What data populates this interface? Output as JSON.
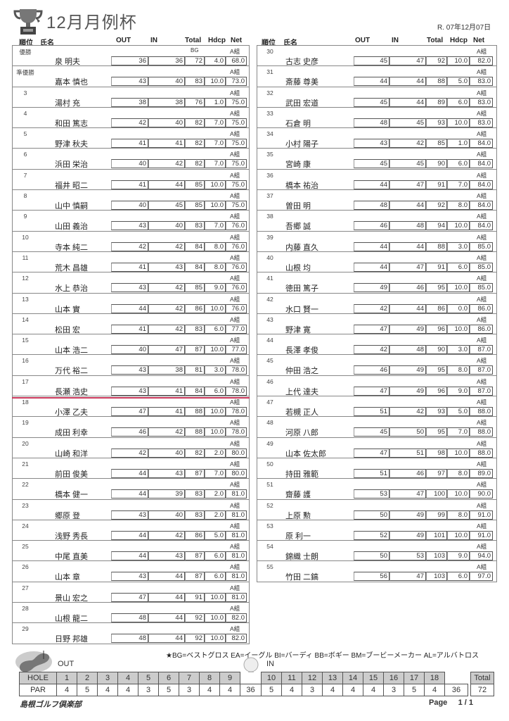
{
  "header": {
    "title": "12月月例杯",
    "date": "R. 07年12月07日"
  },
  "columns": {
    "rank": "順位",
    "name": "氏名",
    "out": "OUT",
    "in": "IN",
    "total": "Total",
    "hdcp": "Hdcp",
    "net": "Net"
  },
  "results": [
    [
      "優勝",
      "泉 明夫",
      36,
      36,
      72,
      "4.0",
      "68.0",
      "A組",
      "BG"
    ],
    [
      "準優勝",
      "嘉本 慎也",
      43,
      40,
      83,
      "10.0",
      "73.0",
      "A組",
      ""
    ],
    [
      "3",
      "湯村 充",
      38,
      38,
      76,
      "1.0",
      "75.0",
      "A組",
      ""
    ],
    [
      "4",
      "和田 篤志",
      42,
      40,
      82,
      "7.0",
      "75.0",
      "A組",
      ""
    ],
    [
      "5",
      "野津 秋夫",
      41,
      41,
      82,
      "7.0",
      "75.0",
      "A組",
      ""
    ],
    [
      "6",
      "浜田 栄治",
      40,
      42,
      82,
      "7.0",
      "75.0",
      "A組",
      ""
    ],
    [
      "7",
      "福井 昭二",
      41,
      44,
      85,
      "10.0",
      "75.0",
      "A組",
      ""
    ],
    [
      "8",
      "山中 慎嗣",
      40,
      45,
      85,
      "10.0",
      "75.0",
      "A組",
      ""
    ],
    [
      "9",
      "山田 義治",
      43,
      40,
      83,
      "7.0",
      "76.0",
      "A組",
      ""
    ],
    [
      "10",
      "寺本 純二",
      42,
      42,
      84,
      "8.0",
      "76.0",
      "A組",
      ""
    ],
    [
      "11",
      "荒木 昌雄",
      41,
      43,
      84,
      "8.0",
      "76.0",
      "A組",
      ""
    ],
    [
      "12",
      "水上 恭治",
      43,
      42,
      85,
      "9.0",
      "76.0",
      "A組",
      ""
    ],
    [
      "13",
      "山本 實",
      44,
      42,
      86,
      "10.0",
      "76.0",
      "A組",
      ""
    ],
    [
      "14",
      "松田 宏",
      41,
      42,
      83,
      "6.0",
      "77.0",
      "A組",
      ""
    ],
    [
      "15",
      "山本 浩二",
      40,
      47,
      87,
      "10.0",
      "77.0",
      "A組",
      ""
    ],
    [
      "16",
      "万代 裕二",
      43,
      38,
      81,
      "3.0",
      "78.0",
      "A組",
      ""
    ],
    [
      "17",
      "長瀬 浩史",
      43,
      41,
      84,
      "6.0",
      "78.0",
      "A組",
      ""
    ],
    [
      "18",
      "小澤 乙夫",
      47,
      41,
      88,
      "10.0",
      "78.0",
      "A組",
      ""
    ],
    [
      "19",
      "成田 利幸",
      46,
      42,
      88,
      "10.0",
      "78.0",
      "A組",
      ""
    ],
    [
      "20",
      "山崎 和洋",
      42,
      40,
      82,
      "2.0",
      "80.0",
      "A組",
      ""
    ],
    [
      "21",
      "前田 俊美",
      44,
      43,
      87,
      "7.0",
      "80.0",
      "A組",
      ""
    ],
    [
      "22",
      "橋本 健一",
      44,
      39,
      83,
      "2.0",
      "81.0",
      "A組",
      ""
    ],
    [
      "23",
      "郷原 登",
      43,
      40,
      83,
      "2.0",
      "81.0",
      "A組",
      ""
    ],
    [
      "24",
      "浅野 秀長",
      44,
      42,
      86,
      "5.0",
      "81.0",
      "A組",
      ""
    ],
    [
      "25",
      "中尾 直美",
      44,
      43,
      87,
      "6.0",
      "81.0",
      "A組",
      ""
    ],
    [
      "26",
      "山本 章",
      43,
      44,
      87,
      "6.0",
      "81.0",
      "A組",
      ""
    ],
    [
      "27",
      "景山 宏之",
      47,
      44,
      91,
      "10.0",
      "81.0",
      "A組",
      ""
    ],
    [
      "28",
      "山根 龍二",
      48,
      44,
      92,
      "10.0",
      "82.0",
      "A組",
      ""
    ],
    [
      "29",
      "日野 邦雄",
      48,
      44,
      92,
      "10.0",
      "82.0",
      "A組",
      ""
    ],
    [
      "30",
      "古志 史彦",
      45,
      47,
      92,
      "10.0",
      "82.0",
      "A組",
      ""
    ],
    [
      "31",
      "斎藤 尊美",
      44,
      44,
      88,
      "5.0",
      "83.0",
      "A組",
      ""
    ],
    [
      "32",
      "武田 宏道",
      45,
      44,
      89,
      "6.0",
      "83.0",
      "A組",
      ""
    ],
    [
      "33",
      "石倉 明",
      48,
      45,
      93,
      "10.0",
      "83.0",
      "A組",
      ""
    ],
    [
      "34",
      "小村 陽子",
      43,
      42,
      85,
      "1.0",
      "84.0",
      "A組",
      ""
    ],
    [
      "35",
      "宮崎 康",
      45,
      45,
      90,
      "6.0",
      "84.0",
      "A組",
      ""
    ],
    [
      "36",
      "橋本 祐治",
      44,
      47,
      91,
      "7.0",
      "84.0",
      "A組",
      ""
    ],
    [
      "37",
      "曽田 明",
      48,
      44,
      92,
      "8.0",
      "84.0",
      "A組",
      ""
    ],
    [
      "38",
      "吾郷 誠",
      46,
      48,
      94,
      "10.0",
      "84.0",
      "A組",
      ""
    ],
    [
      "39",
      "内藤 直久",
      44,
      44,
      88,
      "3.0",
      "85.0",
      "A組",
      ""
    ],
    [
      "40",
      "山根 均",
      44,
      47,
      91,
      "6.0",
      "85.0",
      "A組",
      ""
    ],
    [
      "41",
      "徳田 篤子",
      49,
      46,
      95,
      "10.0",
      "85.0",
      "A組",
      ""
    ],
    [
      "42",
      "水口 賢一",
      42,
      44,
      86,
      "0.0",
      "86.0",
      "A組",
      ""
    ],
    [
      "43",
      "野津 寛",
      47,
      49,
      96,
      "10.0",
      "86.0",
      "A組",
      ""
    ],
    [
      "44",
      "長澤 孝俊",
      42,
      48,
      90,
      "3.0",
      "87.0",
      "A組",
      ""
    ],
    [
      "45",
      "仲田 浩之",
      46,
      49,
      95,
      "8.0",
      "87.0",
      "A組",
      ""
    ],
    [
      "46",
      "上代 達夫",
      47,
      49,
      96,
      "9.0",
      "87.0",
      "A組",
      ""
    ],
    [
      "47",
      "若槻 正人",
      51,
      42,
      93,
      "5.0",
      "88.0",
      "A組",
      ""
    ],
    [
      "48",
      "河原 八郎",
      45,
      50,
      95,
      "7.0",
      "88.0",
      "A組",
      ""
    ],
    [
      "49",
      "山本 佐太郎",
      47,
      51,
      98,
      "10.0",
      "88.0",
      "A組",
      ""
    ],
    [
      "50",
      "持田 雅範",
      51,
      46,
      97,
      "8.0",
      "89.0",
      "A組",
      ""
    ],
    [
      "51",
      "齋藤 護",
      53,
      47,
      100,
      "10.0",
      "90.0",
      "A組",
      ""
    ],
    [
      "52",
      "上原 勲",
      50,
      49,
      99,
      "8.0",
      "91.0",
      "A組",
      ""
    ],
    [
      "53",
      "原 利一",
      52,
      49,
      101,
      "10.0",
      "91.0",
      "A組",
      ""
    ],
    [
      "54",
      "錦織 士朗",
      50,
      53,
      103,
      "9.0",
      "94.0",
      "A組",
      ""
    ],
    [
      "55",
      "竹田 二鎬",
      56,
      47,
      103,
      "6.0",
      "97.0",
      "A組",
      ""
    ]
  ],
  "highlight_after_rank": "17",
  "highlight_color": "#c8365a",
  "legend": "★BG=ベストグロス EA=イーグル BI=バーディ BB=ボギー BM=ブービーメーカー AL=アルバトロス",
  "course": {
    "out_label": "OUT",
    "in_label": "IN",
    "hole_label": "HOLE",
    "par_label": "PAR",
    "total_label": "Total",
    "holes": [
      "1",
      "2",
      "3",
      "4",
      "5",
      "6",
      "7",
      "8",
      "9",
      "10",
      "11",
      "12",
      "13",
      "14",
      "15",
      "16",
      "17",
      "18"
    ],
    "par": [
      "4",
      "5",
      "4",
      "4",
      "3",
      "5",
      "3",
      "4",
      "4",
      "5",
      "4",
      "3",
      "4",
      "4",
      "4",
      "3",
      "5",
      "4"
    ],
    "out_par": "36",
    "in_par": "36",
    "total_par": "72"
  },
  "footer": {
    "club": "島根ゴルフ倶楽部",
    "page_label": "Page",
    "page": "1 /  1"
  }
}
